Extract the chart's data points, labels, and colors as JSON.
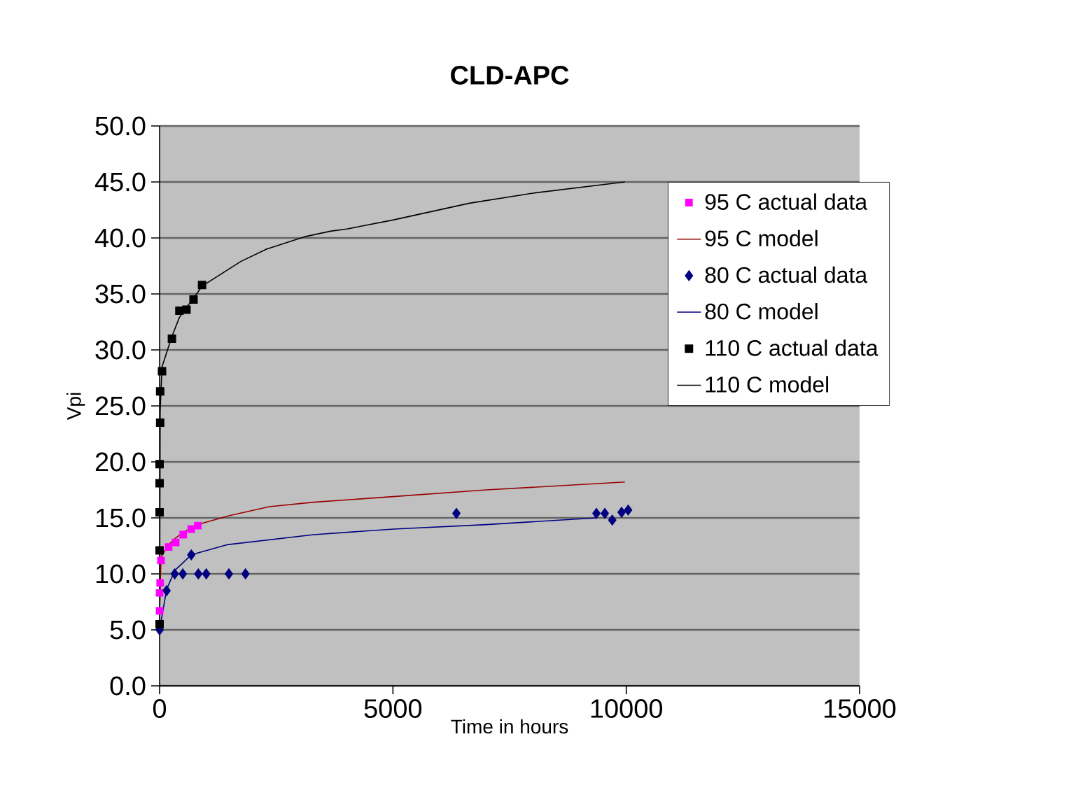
{
  "chart_data": {
    "type": "line",
    "title": "CLD-APC",
    "xlabel": "Time in hours",
    "ylabel": "Vpi",
    "xlim": [
      0,
      15000
    ],
    "xticks": [
      0,
      5000,
      10000,
      15000
    ],
    "ylim": [
      0,
      50
    ],
    "yticks": [
      {
        "value": 0,
        "label": "0.0"
      },
      {
        "value": 5,
        "label": "5.0"
      },
      {
        "value": 10,
        "label": "10.0"
      },
      {
        "value": 15,
        "label": "15.0"
      },
      {
        "value": 20,
        "label": "20.0"
      },
      {
        "value": 25,
        "label": "25.0"
      },
      {
        "value": 30,
        "label": "30.0"
      },
      {
        "value": 35,
        "label": "35.0"
      },
      {
        "value": 40,
        "label": "40.0"
      },
      {
        "value": 45,
        "label": "45.0"
      },
      {
        "value": 50,
        "label": "50.0"
      }
    ],
    "grid": "y",
    "legend": "right",
    "series": [
      {
        "name": "95 C actual data",
        "type": "scatter",
        "marker": "square",
        "color": "#ff00ff",
        "x": [
          0,
          0,
          12,
          30,
          194,
          345,
          506,
          679,
          818
        ],
        "values": [
          6.7,
          8.3,
          9.2,
          11.2,
          12.4,
          12.8,
          13.5,
          14.0,
          14.3
        ]
      },
      {
        "name": "95 C model",
        "marker": "none",
        "color": "#990000",
        "x": [
          0,
          30,
          194,
          345,
          506,
          679,
          818,
          1500,
          2350,
          3300,
          5000,
          7000,
          9970
        ],
        "values": [
          6.5,
          11.5,
          12.6,
          13.2,
          13.7,
          14.1,
          14.4,
          15.2,
          16.0,
          16.4,
          16.9,
          17.5,
          18.2
        ]
      },
      {
        "name": "80 C actual data",
        "type": "scatter",
        "marker": "diamond",
        "color": "#000080",
        "x": [
          0,
          150,
          324,
          497,
          679,
          830,
          1000,
          1485,
          1840,
          6360,
          9360,
          9540,
          9700,
          9900,
          10040
        ],
        "values": [
          5.0,
          8.5,
          10.0,
          10.0,
          11.7,
          10.0,
          10.0,
          10.0,
          10.0,
          15.4,
          15.4,
          15.4,
          14.8,
          15.5,
          15.7
        ]
      },
      {
        "name": "80 C model",
        "marker": "none",
        "color": "#000080",
        "x": [
          0,
          150,
          324,
          679,
          1440,
          3300,
          5020,
          7000,
          9360
        ],
        "values": [
          5.0,
          8.6,
          10.3,
          11.7,
          12.6,
          13.5,
          14.0,
          14.4,
          15.0
        ]
      },
      {
        "name": "110 C actual data",
        "type": "scatter",
        "marker": "square",
        "color": "#000000",
        "x": [
          0,
          0,
          0,
          0,
          0,
          12,
          12,
          52,
          264,
          424,
          576,
          727,
          910
        ],
        "values": [
          5.5,
          12.1,
          15.5,
          18.1,
          19.8,
          23.5,
          26.3,
          28.1,
          31.0,
          33.5,
          33.6,
          34.5,
          35.8
        ]
      },
      {
        "name": "110 C model",
        "marker": "none",
        "color": "#000000",
        "x": [
          0,
          12,
          52,
          264,
          424,
          576,
          727,
          910,
          1740,
          2290,
          3100,
          3660,
          4010,
          5000,
          6640,
          8000,
          9970
        ],
        "values": [
          5.5,
          24.5,
          28.5,
          31.2,
          32.9,
          33.8,
          34.6,
          35.7,
          37.9,
          39.0,
          40.1,
          40.6,
          40.8,
          41.6,
          43.1,
          44.0,
          45.0
        ]
      }
    ]
  }
}
